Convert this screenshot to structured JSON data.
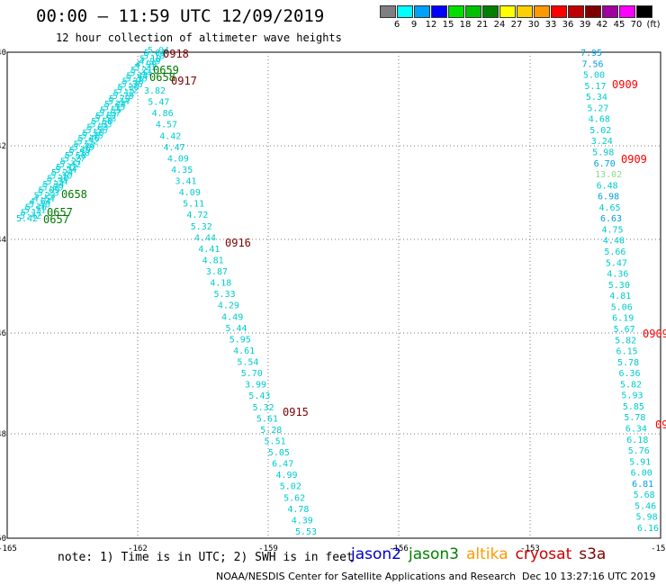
{
  "title": "00:00 – 11:59 UTC 12/09/2019",
  "subtitle": "12 hour collection of altimeter wave heights",
  "legend": {
    "unit": "(ft)",
    "scale": [
      {
        "label": "3",
        "color": "#7f7f7f"
      },
      {
        "label": "6",
        "color": "#00ffff"
      },
      {
        "label": "9",
        "color": "#00a0ff"
      },
      {
        "label": "12",
        "color": "#0000ff"
      },
      {
        "label": "15",
        "color": "#00e000"
      },
      {
        "label": "18",
        "color": "#00c000"
      },
      {
        "label": "21",
        "color": "#008000"
      },
      {
        "label": "24",
        "color": "#ffff00"
      },
      {
        "label": "27",
        "color": "#ffd000"
      },
      {
        "label": "30",
        "color": "#ff9900"
      },
      {
        "label": "33",
        "color": "#ff0000"
      },
      {
        "label": "36",
        "color": "#c00000"
      },
      {
        "label": "39",
        "color": "#800000"
      },
      {
        "label": "42",
        "color": "#a000a0"
      },
      {
        "label": "45",
        "color": "#ff00ff"
      },
      {
        "label": "70",
        "color": "#000000"
      }
    ]
  },
  "axes": {
    "x_ticks": [
      "-165",
      "-162",
      "-159",
      "-156",
      "-153",
      "-150"
    ],
    "y_ticks": [
      "-40",
      "-42",
      "-44",
      "-46",
      "-48",
      "-50"
    ]
  },
  "note": "note: 1) Time is in UTC; 2) SWH is in feet",
  "satellites": [
    {
      "name": "jason2",
      "color": "#0000cc"
    },
    {
      "name": "jason3",
      "color": "#008000"
    },
    {
      "name": "altika",
      "color": "#ff9900"
    },
    {
      "name": "cryosat",
      "color": "#cc0000"
    },
    {
      "name": "s3a",
      "color": "#800000"
    }
  ],
  "footer_left": "NOAA/NESDIS Center for Satellite Applications and Research",
  "footer_right": "Dec 10 13:27:16 UTC 2019",
  "tracks": {
    "jason3_labels": [
      "0659",
      "0658",
      "0658",
      "0657",
      "0657"
    ],
    "s3a_labels": [
      "0918",
      "0917",
      "0916",
      "0915"
    ],
    "cryosat_labels": [
      "0909",
      "0909",
      "0909",
      "09"
    ],
    "s3a_values": [
      "3.82",
      "5.47",
      "4.86",
      "4.57",
      "4.42",
      "4.47",
      "4.09",
      "4.35",
      "3.41",
      "4.09",
      "5.11",
      "4.72",
      "5.32",
      "4.44",
      "4.41",
      "4.81",
      "3.87",
      "4.18",
      "5.33",
      "4.29",
      "4.49",
      "5.44",
      "5.95",
      "4.61",
      "5.54",
      "5.70",
      "3.99",
      "5.43",
      "5.32",
      "5.61",
      "5.28",
      "5.51",
      "5.05",
      "6.47",
      "4.99",
      "5.02",
      "5.62",
      "4.78",
      "4.39",
      "5.53"
    ],
    "cryosat_values": [
      "7.95",
      "7.56",
      "5.00",
      "5.17",
      "5.34",
      "5.27",
      "4.68",
      "5.02",
      "3.24",
      "5.98",
      "6.70",
      "13.02",
      "6.48",
      "6.98",
      "4.65",
      "6.63",
      "4.75",
      "4.48",
      "5.66",
      "5.47",
      "4.36",
      "5.30",
      "4.81",
      "5.06",
      "6.19",
      "5.67",
      "5.82",
      "6.15",
      "5.78",
      "6.36",
      "5.82",
      "5.93",
      "5.85",
      "5.78",
      "6.34",
      "6.18",
      "5.76",
      "5.91",
      "6.00",
      "6.81",
      "5.68",
      "5.46",
      "5.98",
      "6.16"
    ],
    "jason3_values": [
      "5.42",
      "5.11",
      "5.46",
      "4.64",
      "5.23",
      "5.09",
      "5.34",
      "5.30",
      "5.24",
      "5.42",
      "5.27",
      "5.58",
      "5.49",
      "5.52",
      "5.46",
      "5.56",
      "5.63",
      "5.58",
      "5.67",
      "5.55",
      "5.44",
      "5.79",
      "5.12",
      "5.36",
      "5.38",
      "5.44",
      "5.21",
      "4.99",
      "5.18",
      "5.04"
    ]
  }
}
